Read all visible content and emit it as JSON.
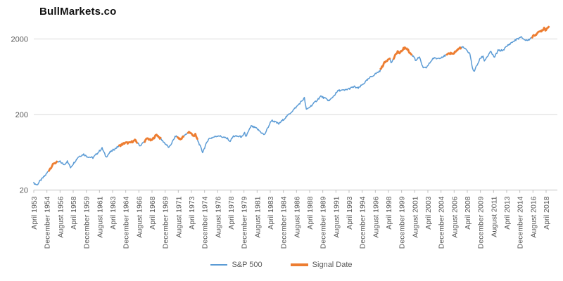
{
  "title": "BullMarkets.co",
  "legend": {
    "items": [
      {
        "label": "S&P 500",
        "color": "#5B9BD5"
      },
      {
        "label": "Signal Date",
        "color": "#ED7D31"
      }
    ]
  },
  "chart_data": {
    "type": "line",
    "title": "BullMarkets.co",
    "xlabel": "",
    "ylabel": "",
    "y_scale": "log",
    "y_ticks": [
      20,
      200,
      2000
    ],
    "ylim": [
      20,
      3200
    ],
    "grid": "horizontal",
    "legend_position": "bottom",
    "gridline_color": "#D9D9D9",
    "axis_color": "#BFBFBF",
    "tick_label_color": "#595959",
    "x_tick_labels": [
      "April 1953",
      "December 1954",
      "August 1956",
      "April 1958",
      "December 1959",
      "August 1961",
      "April 1963",
      "December 1964",
      "August 1966",
      "April 1968",
      "December 1969",
      "August 1971",
      "April 1973",
      "December 1974",
      "August 1976",
      "April 1978",
      "December 1979",
      "August 1981",
      "April 1983",
      "December 1984",
      "August 1986",
      "April 1988",
      "December 1989",
      "August 1991",
      "April 1993",
      "December 1994",
      "August 1996",
      "April 1998",
      "December 1999",
      "August 2001",
      "April 2003",
      "December 2004",
      "August 2006",
      "April 2008",
      "December 2009",
      "August 2011",
      "April 2013",
      "December 2014",
      "August 2016",
      "April 2018"
    ],
    "series": [
      {
        "name": "S&P 500",
        "color": "#5B9BD5",
        "points": [
          [
            "1953-04",
            24.7
          ],
          [
            "1953-09",
            23.3
          ],
          [
            "1954-01",
            26.1
          ],
          [
            "1954-10",
            31.7
          ],
          [
            "1955-03",
            36.6
          ],
          [
            "1955-11",
            45.5
          ],
          [
            "1956-08",
            47.5
          ],
          [
            "1957-02",
            43.3
          ],
          [
            "1957-07",
            47.9
          ],
          [
            "1957-12",
            40.0
          ],
          [
            "1958-12",
            55.2
          ],
          [
            "1959-08",
            59.6
          ],
          [
            "1960-01",
            55.6
          ],
          [
            "1960-10",
            53.4
          ],
          [
            "1961-12",
            71.6
          ],
          [
            "1962-06",
            54.8
          ],
          [
            "1962-12",
            63.1
          ],
          [
            "1963-12",
            75.0
          ],
          [
            "1964-11",
            84.4
          ],
          [
            "1965-06",
            84.1
          ],
          [
            "1966-02",
            91.2
          ],
          [
            "1966-10",
            77.1
          ],
          [
            "1967-09",
            96.7
          ],
          [
            "1968-03",
            90.2
          ],
          [
            "1968-11",
            108.4
          ],
          [
            "1969-07",
            91.8
          ],
          [
            "1970-06",
            72.7
          ],
          [
            "1971-04",
            103.9
          ],
          [
            "1971-11",
            93.9
          ],
          [
            "1972-12",
            118.1
          ],
          [
            "1973-08",
            104.2
          ],
          [
            "1973-10",
            108.3
          ],
          [
            "1974-09",
            63.5
          ],
          [
            "1975-06",
            95.2
          ],
          [
            "1976-09",
            105.2
          ],
          [
            "1977-12",
            95.1
          ],
          [
            "1978-02",
            87.0
          ],
          [
            "1978-08",
            103.3
          ],
          [
            "1979-10",
            101.8
          ],
          [
            "1980-01",
            114.2
          ],
          [
            "1980-03",
            102.1
          ],
          [
            "1980-11",
            140.5
          ],
          [
            "1981-07",
            130.9
          ],
          [
            "1982-07",
            107.1
          ],
          [
            "1983-06",
            168.1
          ],
          [
            "1984-05",
            150.6
          ],
          [
            "1985-06",
            191.8
          ],
          [
            "1986-08",
            252.9
          ],
          [
            "1987-08",
            329.8
          ],
          [
            "1987-11",
            230.3
          ],
          [
            "1988-10",
            278.9
          ],
          [
            "1989-09",
            349.2
          ],
          [
            "1990-10",
            304.0
          ],
          [
            "1991-12",
            417.1
          ],
          [
            "1992-09",
            417.8
          ],
          [
            "1993-12",
            466.4
          ],
          [
            "1994-06",
            444.3
          ],
          [
            "1995-12",
            615.9
          ],
          [
            "1996-06",
            670.6
          ],
          [
            "1997-03",
            757.1
          ],
          [
            "1997-09",
            947.3
          ],
          [
            "1998-06",
            1133.8
          ],
          [
            "1998-08",
            957.3
          ],
          [
            "1999-06",
            1372.7
          ],
          [
            "1999-09",
            1282.7
          ],
          [
            "2000-03",
            1498.6
          ],
          [
            "2000-08",
            1517.7
          ],
          [
            "2000-12",
            1320.3
          ],
          [
            "2001-08",
            1133.6
          ],
          [
            "2001-09",
            1040.9
          ],
          [
            "2002-03",
            1147.4
          ],
          [
            "2002-09",
            815.3
          ],
          [
            "2003-02",
            841.2
          ],
          [
            "2003-12",
            1111.9
          ],
          [
            "2004-07",
            1101.7
          ],
          [
            "2005-11",
            1249.5
          ],
          [
            "2006-04",
            1310.6
          ],
          [
            "2006-06",
            1270.2
          ],
          [
            "2007-05",
            1530.6
          ],
          [
            "2007-10",
            1549.4
          ],
          [
            "2008-08",
            1282.8
          ],
          [
            "2008-11",
            896.2
          ],
          [
            "2009-02",
            735.1
          ],
          [
            "2009-12",
            1115.1
          ],
          [
            "2010-04",
            1186.7
          ],
          [
            "2010-06",
            1030.7
          ],
          [
            "2011-04",
            1363.6
          ],
          [
            "2011-09",
            1131.4
          ],
          [
            "2012-03",
            1408.5
          ],
          [
            "2012-10",
            1412.2
          ],
          [
            "2013-07",
            1685.7
          ],
          [
            "2014-08",
            2003.4
          ],
          [
            "2015-02",
            2104.5
          ],
          [
            "2015-09",
            1920.0
          ],
          [
            "2016-01",
            1940.2
          ],
          [
            "2016-06",
            2098.9
          ],
          [
            "2017-02",
            2363.6
          ],
          [
            "2017-11",
            2647.6
          ],
          [
            "2018-01",
            2823.8
          ],
          [
            "2018-03",
            2640.9
          ],
          [
            "2018-08",
            2901.5
          ]
        ]
      }
    ],
    "signal": {
      "name": "Signal Date",
      "color": "#ED7D31",
      "segments": [
        [
          "1955-03",
          "1956-03"
        ],
        [
          "1964-02",
          "1966-05"
        ],
        [
          "1967-05",
          "1969-05"
        ],
        [
          "1971-07",
          "1972-04"
        ],
        [
          "1972-11",
          "1974-01"
        ],
        [
          "1997-04",
          "1998-06"
        ],
        [
          "1998-12",
          "2001-03"
        ],
        [
          "2005-09",
          "2007-06"
        ],
        [
          "2016-07",
          "2018-08"
        ]
      ]
    }
  }
}
